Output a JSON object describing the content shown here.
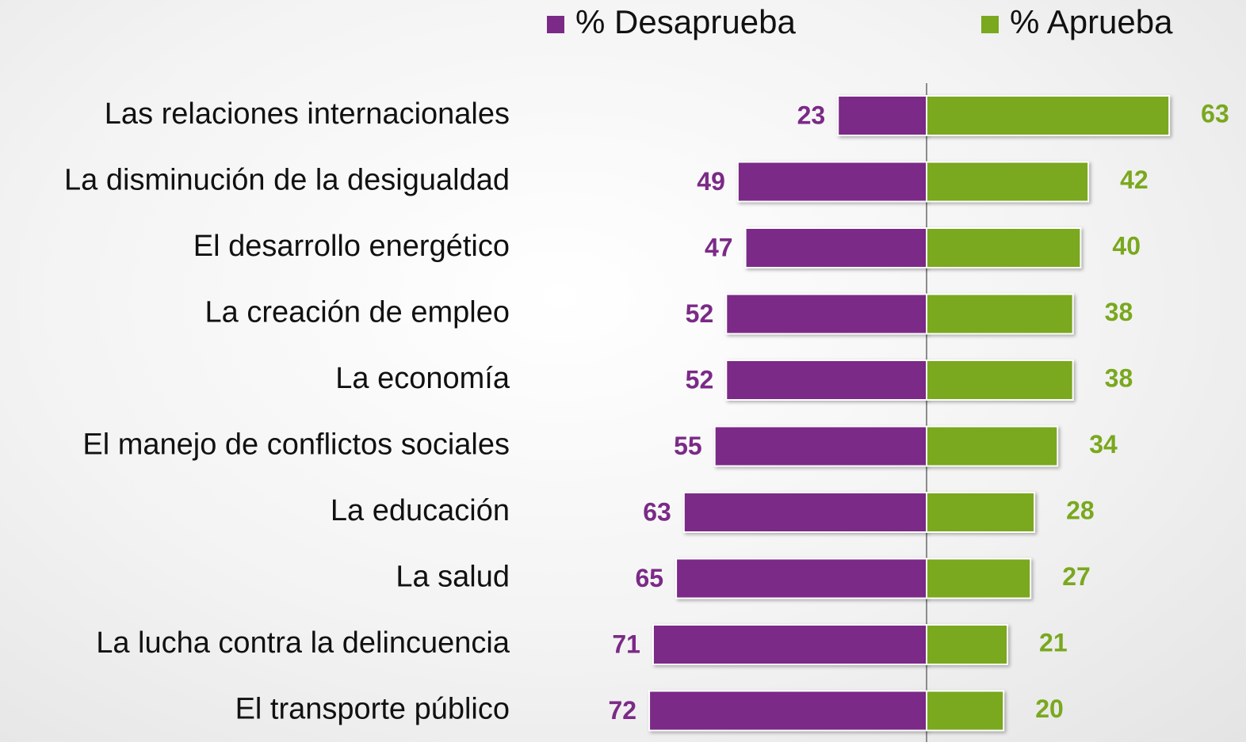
{
  "chart_data": {
    "type": "diverging-bar",
    "categories": [
      "Las relaciones internacionales",
      "La disminución de la desigualdad",
      "El desarrollo energético",
      "La creación de empleo",
      "La economía",
      "El manejo de conflictos sociales",
      "La educación",
      "La salud",
      "La lucha contra la delincuencia",
      "El transporte público"
    ],
    "series": [
      {
        "name": "% Desaprueba",
        "color": "#7b2a87",
        "values": [
          23,
          49,
          47,
          52,
          52,
          55,
          63,
          65,
          71,
          72
        ]
      },
      {
        "name": "% Aprueba",
        "color": "#7aa81e",
        "values": [
          63,
          42,
          40,
          38,
          38,
          34,
          28,
          27,
          21,
          20
        ]
      }
    ]
  }
}
